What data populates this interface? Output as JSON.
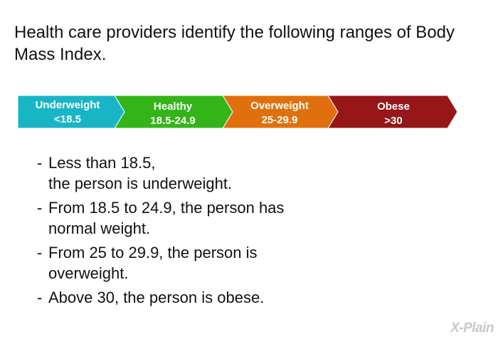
{
  "intro": "Health care providers identify the following ranges of Body Mass Index.",
  "segments": [
    {
      "name": "Underweight",
      "range": "<18.5",
      "color": "#17b5c6"
    },
    {
      "name": "Healthy",
      "range": "18.5-24.9",
      "color": "#33b51a"
    },
    {
      "name": "Overweight",
      "range": "25-29.9",
      "color": "#e0700d"
    },
    {
      "name": "Obese",
      "range": ">30",
      "color": "#96161a"
    }
  ],
  "bullets": [
    {
      "dash": "-",
      "l1": "Less than 18.5,",
      "l2": "the person is underweight."
    },
    {
      "dash": "-",
      "l1": "From 18.5 to 24.9, the person has",
      "l2": "normal weight."
    },
    {
      "dash": "-",
      "l1": "From 25 to 29.9, the person is",
      "l2": "overweight."
    },
    {
      "dash": "-",
      "l1": "Above 30, the person is obese.",
      "l2": ""
    }
  ],
  "logo": "X-Plain"
}
